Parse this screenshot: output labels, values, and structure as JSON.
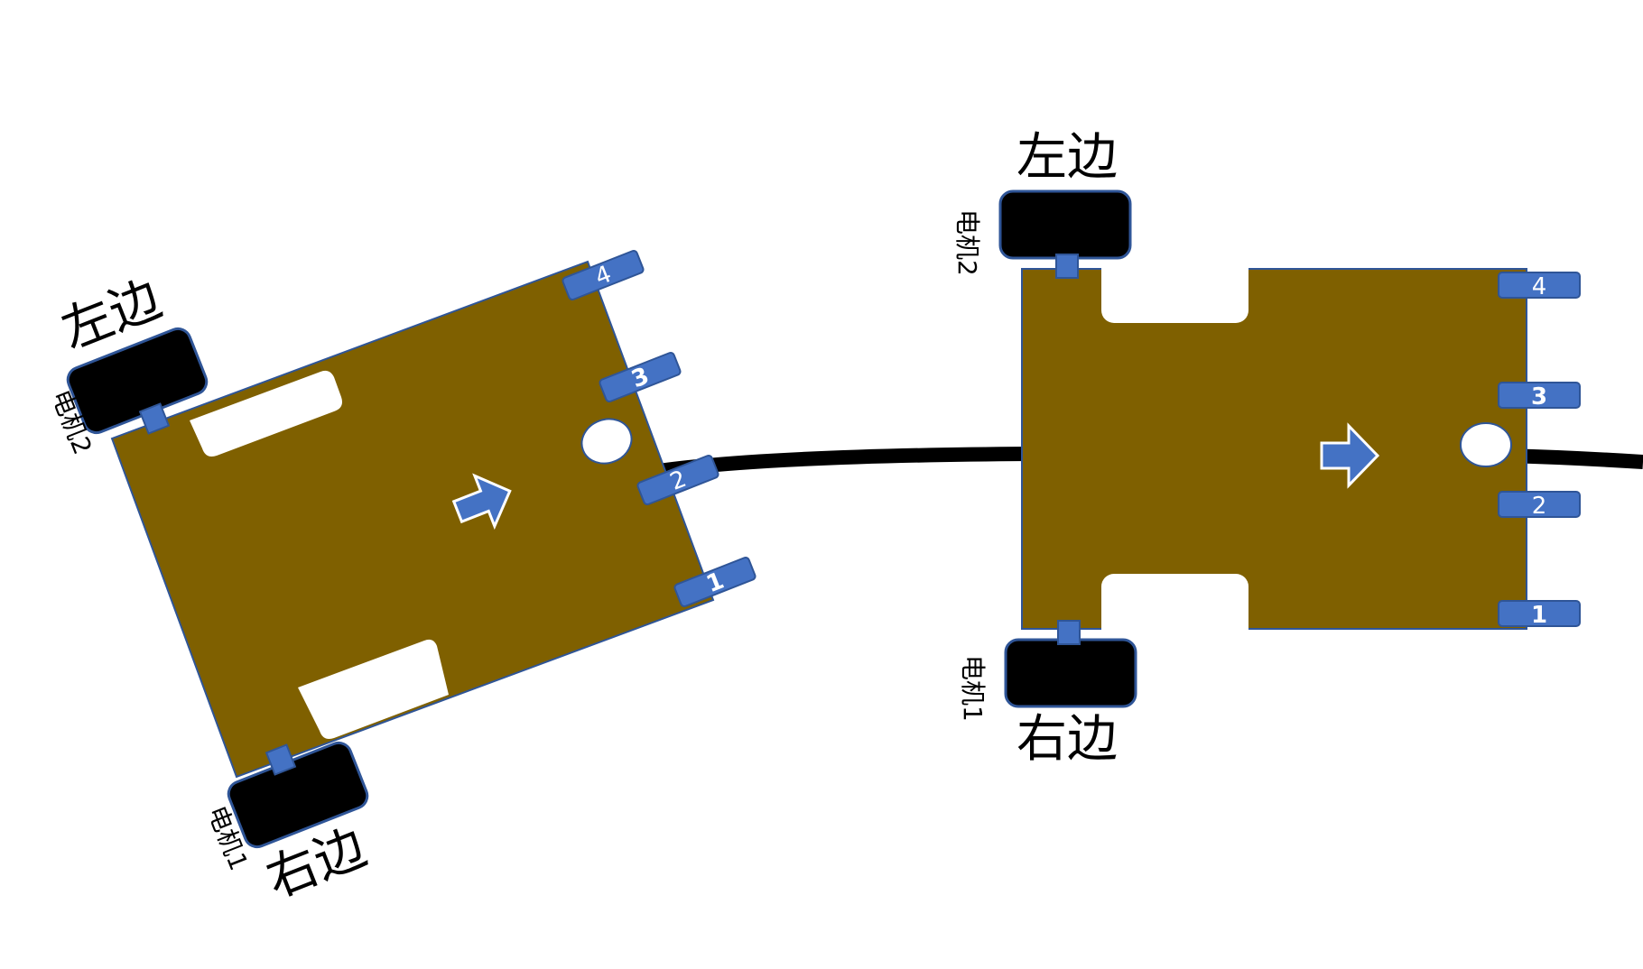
{
  "colors": {
    "board": "#7f6000",
    "board_outline": "#2f5597",
    "accent": "#4472c4",
    "accent_outline": "#2f5597",
    "wheel": "#000000",
    "track": "#000000",
    "background": "#ffffff"
  },
  "robots": [
    {
      "id": "robot-angled",
      "left_label": "左边",
      "right_label": "右边",
      "motor_left": "电机2",
      "motor_right": "电机1",
      "sensors": [
        "4",
        "3",
        "2",
        "1"
      ]
    },
    {
      "id": "robot-straight",
      "left_label": "左边",
      "right_label": "右边",
      "motor_left": "电机2",
      "motor_right": "电机1",
      "sensors": [
        "4",
        "3",
        "2",
        "1"
      ]
    }
  ],
  "icons": {
    "direction": "arrow-right-icon",
    "hole": "circle-hole-icon"
  }
}
